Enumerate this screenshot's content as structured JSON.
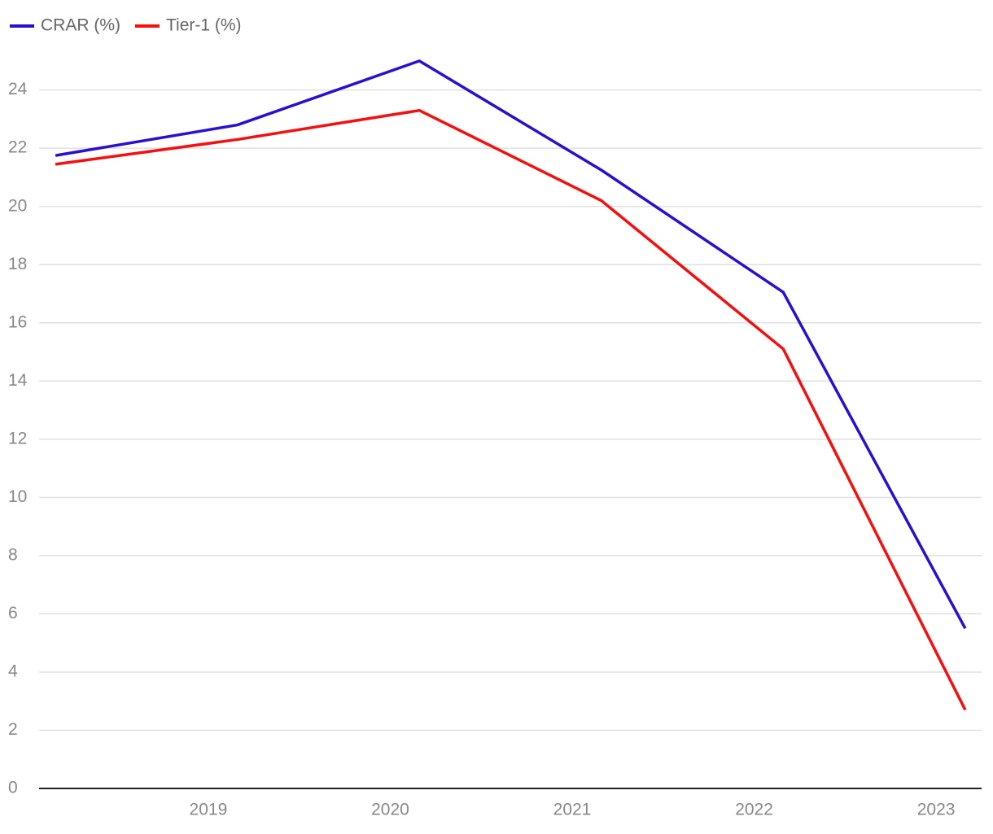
{
  "chart_data": {
    "type": "line",
    "x": [
      2018.16,
      2019.16,
      2020.16,
      2021.16,
      2022.16,
      2023.16
    ],
    "series": [
      {
        "name": "CRAR (%)",
        "color": "#2a0fd0",
        "values": [
          21.75,
          22.8,
          25.0,
          21.25,
          17.05,
          5.5
        ]
      },
      {
        "name": "Tier-1 (%)",
        "color": "#f50f0f",
        "values": [
          21.45,
          22.3,
          23.3,
          20.2,
          15.1,
          2.7
        ]
      }
    ],
    "xlim": [
      2018.07,
      2023.25
    ],
    "xticks": [
      2019,
      2020,
      2021,
      2022,
      2023
    ],
    "ylim": [
      0,
      25.5
    ],
    "yticks": [
      0,
      2,
      4,
      6,
      8,
      10,
      12,
      14,
      16,
      18,
      20,
      22,
      24
    ],
    "grid": true,
    "legend": "top-left"
  }
}
